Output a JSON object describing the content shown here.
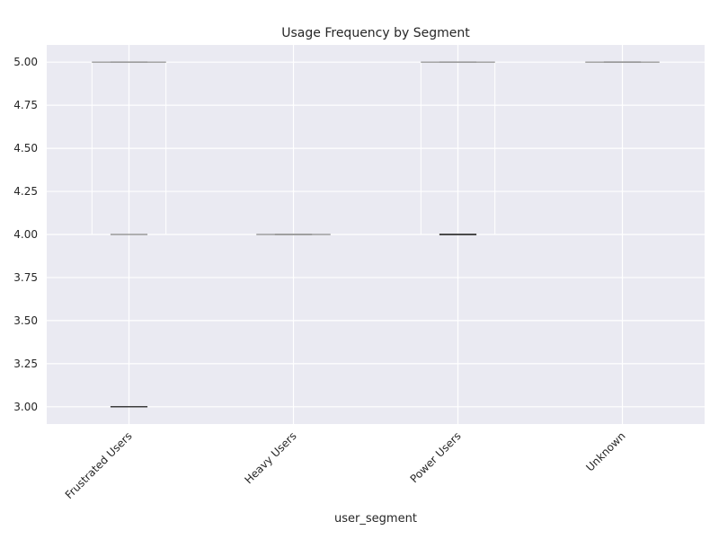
{
  "chart_data": {
    "type": "box",
    "title": "Usage Frequency by Segment",
    "xlabel": "user_segment",
    "ylabel": "",
    "categories": [
      "Frustrated Users",
      "Heavy Users",
      "Power Users",
      "Unknown"
    ],
    "boxes": [
      {
        "category": "Frustrated Users",
        "whisker_low": 4.0,
        "q1": 4.0,
        "median": 5.0,
        "q3": 5.0,
        "whisker_high": 5.0,
        "outliers": [
          3.0
        ]
      },
      {
        "category": "Heavy Users",
        "whisker_low": 4.0,
        "q1": 4.0,
        "median": 4.0,
        "q3": 4.0,
        "whisker_high": 4.0,
        "outliers": []
      },
      {
        "category": "Power Users",
        "whisker_low": 4.0,
        "q1": 4.0,
        "median": 5.0,
        "q3": 5.0,
        "whisker_high": 5.0,
        "outliers": [
          4.0
        ]
      },
      {
        "category": "Unknown",
        "whisker_low": 5.0,
        "q1": 5.0,
        "median": 5.0,
        "q3": 5.0,
        "whisker_high": 5.0,
        "outliers": []
      }
    ],
    "yticks": [
      "3.00",
      "3.25",
      "3.50",
      "3.75",
      "4.00",
      "4.25",
      "4.50",
      "4.75",
      "5.00"
    ],
    "ylim": [
      2.9,
      5.1
    ],
    "grid": true,
    "colors": {
      "plot_background": "#eaeaf2",
      "grid": "#ffffff",
      "box": "#9a9a9a",
      "median": "#9a9a9a",
      "outlier": "#000000"
    }
  }
}
